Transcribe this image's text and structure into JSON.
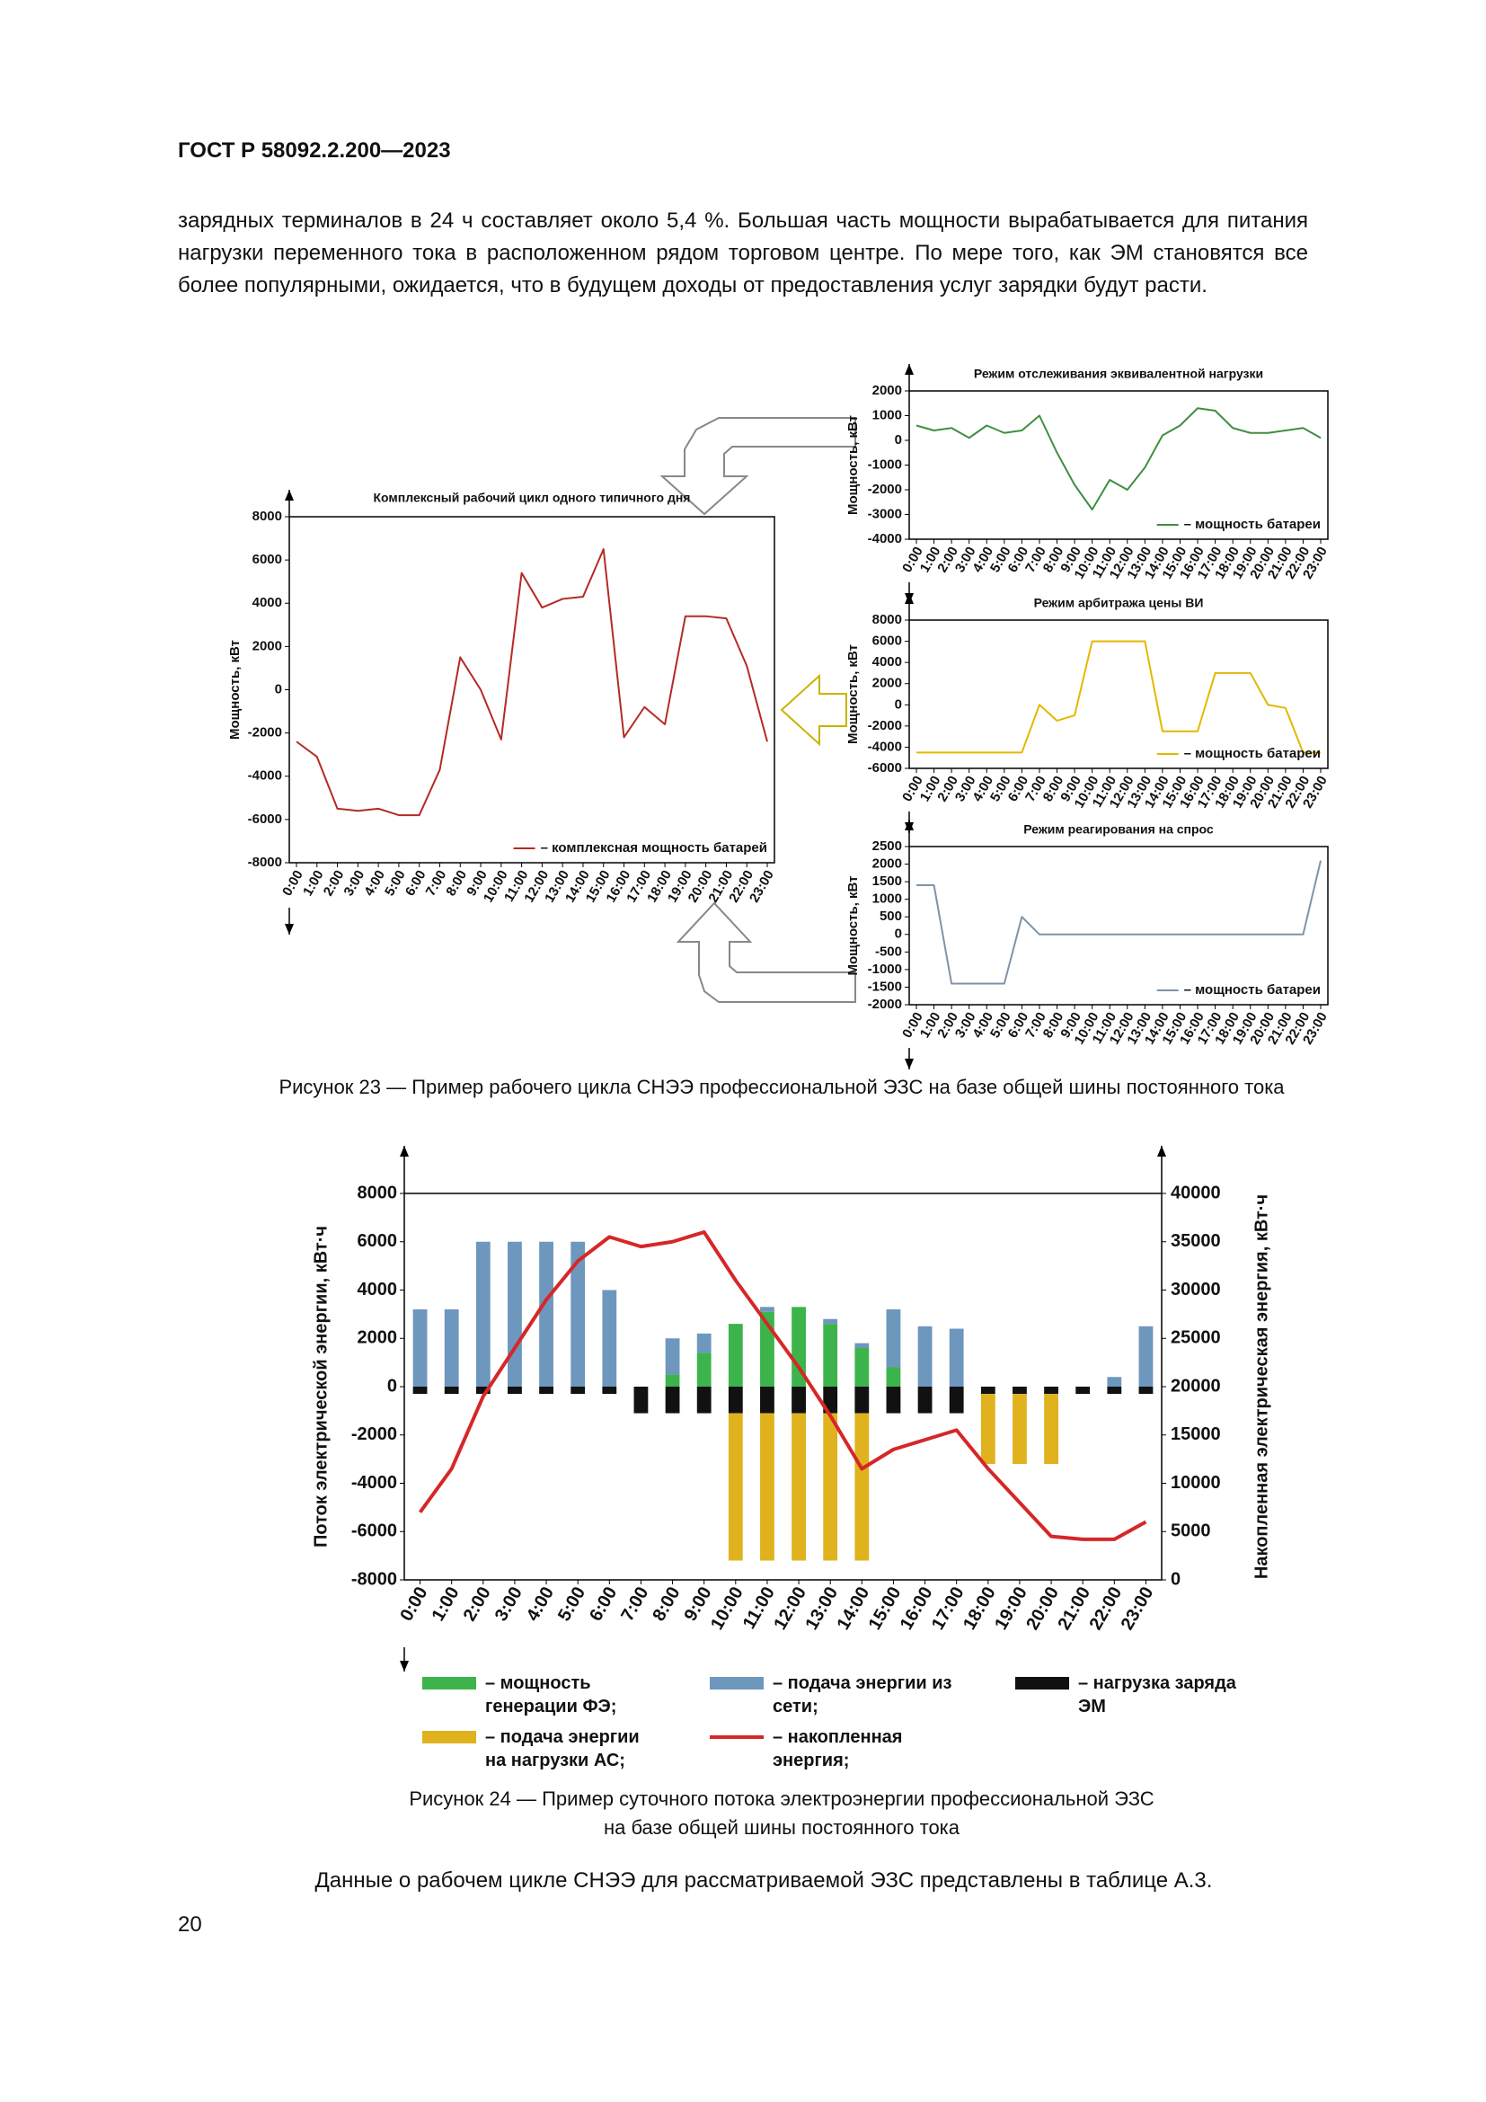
{
  "header": "ГОСТ Р 58092.2.200—2023",
  "intro_text": "зарядных терминалов в 24 ч составляет около 5,4 %. Большая часть мощности вырабатывается для питания нагрузки переменного тока в расположенном рядом торговом центре. По мере того, как ЭМ становятся все более популярными, ожидается, что в будущем доходы от предоставления услуг зарядки будут расти.",
  "figure_23": {
    "charts": [
      {
        "type": "line",
        "title": "Комплексный рабочий цикл одного типичного дня",
        "ylabel": "Мощность, кВт",
        "categories": [
          "0:00",
          "1:00",
          "2:00",
          "3:00",
          "4:00",
          "5:00",
          "6:00",
          "7:00",
          "8:00",
          "9:00",
          "10:00",
          "11:00",
          "12:00",
          "13:00",
          "14:00",
          "15:00",
          "16:00",
          "17:00",
          "18:00",
          "19:00",
          "20:00",
          "21:00",
          "22:00",
          "23:00"
        ],
        "series": [
          {
            "name": "– комплексная мощность батарей",
            "color": "#b52a25",
            "values": [
              -2400,
              -3100,
              -5500,
              -5600,
              -5500,
              -5800,
              -5800,
              -3700,
              1500,
              0,
              -2300,
              5400,
              3800,
              4200,
              4300,
              6500,
              -2200,
              -800,
              -1600,
              3400,
              3400,
              3300,
              1100,
              -2400
            ]
          }
        ],
        "ylim": [
          -8000,
          8000
        ],
        "yticks": [
          -8000,
          -6000,
          -4000,
          -2000,
          0,
          2000,
          4000,
          6000,
          8000
        ],
        "legend": "lower right"
      },
      {
        "type": "line",
        "title": "Режим отслеживания эквивалентной нагрузки",
        "ylabel": "Мощность, кВт",
        "categories": [
          "0:00",
          "1:00",
          "2:00",
          "3:00",
          "4:00",
          "5:00",
          "6:00",
          "7:00",
          "8:00",
          "9:00",
          "10:00",
          "11:00",
          "12:00",
          "13:00",
          "14:00",
          "15:00",
          "16:00",
          "17:00",
          "18:00",
          "19:00",
          "20:00",
          "21:00",
          "22:00",
          "23:00"
        ],
        "series": [
          {
            "name": "– мощность батареи",
            "color": "#3f8f3f",
            "values": [
              600,
              400,
              500,
              100,
              600,
              300,
              400,
              1000,
              -500,
              -1800,
              -2800,
              -1600,
              -2000,
              -1100,
              200,
              600,
              1300,
              1200,
              500,
              300,
              300,
              400,
              500,
              100
            ]
          }
        ],
        "ylim": [
          -4000,
          2000
        ],
        "yticks": [
          -4000,
          -3000,
          -2000,
          -1000,
          0,
          1000,
          2000
        ],
        "legend": "lower right"
      },
      {
        "type": "line",
        "title": "Режим арбитража цены ВИ",
        "ylabel": "Мощность, кВт",
        "categories": [
          "0:00",
          "1:00",
          "2:00",
          "3:00",
          "4:00",
          "5:00",
          "6:00",
          "7:00",
          "8:00",
          "9:00",
          "10:00",
          "11:00",
          "12:00",
          "13:00",
          "14:00",
          "15:00",
          "16:00",
          "17:00",
          "18:00",
          "19:00",
          "20:00",
          "21:00",
          "22:00",
          "23:00"
        ],
        "series": [
          {
            "name": "– мощность батареи",
            "color": "#e3b800",
            "values": [
              -4500,
              -4500,
              -4500,
              -4500,
              -4500,
              -4500,
              -4500,
              0,
              -1500,
              -1000,
              6000,
              6000,
              6000,
              6000,
              -2500,
              -2500,
              -2500,
              3000,
              3000,
              3000,
              0,
              -300,
              -4500,
              -4500
            ]
          }
        ],
        "ylim": [
          -6000,
          8000
        ],
        "yticks": [
          -6000,
          -4000,
          -2000,
          0,
          2000,
          4000,
          6000,
          8000
        ],
        "legend": "lower right"
      },
      {
        "type": "line",
        "title": "Режим реагирования на спрос",
        "ylabel": "Мощность, кВт",
        "categories": [
          "0:00",
          "1:00",
          "2:00",
          "3:00",
          "4:00",
          "5:00",
          "6:00",
          "7:00",
          "8:00",
          "9:00",
          "10:00",
          "11:00",
          "12:00",
          "13:00",
          "14:00",
          "15:00",
          "16:00",
          "17:00",
          "18:00",
          "19:00",
          "20:00",
          "21:00",
          "22:00",
          "23:00"
        ],
        "series": [
          {
            "name": "– мощность батареи",
            "color": "#7f93a8",
            "values": [
              1400,
              1400,
              -1400,
              -1400,
              -1400,
              -1400,
              500,
              0,
              0,
              0,
              0,
              0,
              0,
              0,
              0,
              0,
              0,
              0,
              0,
              0,
              0,
              0,
              0,
              2100
            ]
          }
        ],
        "ylim": [
          -2000,
          2500
        ],
        "yticks": [
          -2000,
          -1500,
          -1000,
          -500,
          0,
          500,
          1000,
          1500,
          2000,
          2500
        ],
        "legend": "lower right"
      }
    ],
    "caption": "Рисунок 23 — Пример рабочего цикла СНЭЭ профессиональной ЭЗС на базе общей шины постоянного тока"
  },
  "figure_24": {
    "chart": {
      "type": "bar",
      "stacked": true,
      "ylabel": "Поток электрической энергии, кВт·ч",
      "y2label": "Накопленная электрическая энергия, кВт·ч",
      "categories": [
        "0:00",
        "1:00",
        "2:00",
        "3:00",
        "4:00",
        "5:00",
        "6:00",
        "7:00",
        "8:00",
        "9:00",
        "10:00",
        "11:00",
        "12:00",
        "13:00",
        "14:00",
        "15:00",
        "16:00",
        "17:00",
        "18:00",
        "19:00",
        "20:00",
        "21:00",
        "22:00",
        "23:00"
      ],
      "series": [
        {
          "name": "– мощность генерации ФЭ;",
          "color": "#3cb44b",
          "values": [
            0,
            0,
            0,
            0,
            0,
            0,
            0,
            0,
            500,
            1400,
            2600,
            3100,
            3300,
            2600,
            1600,
            800,
            0,
            0,
            0,
            0,
            0,
            0,
            0,
            0
          ]
        },
        {
          "name": "– подача энергии из сети;",
          "color": "#6e97bd",
          "values": [
            3200,
            3200,
            6000,
            6000,
            6000,
            6000,
            4000,
            0,
            1500,
            800,
            0,
            200,
            0,
            200,
            200,
            2400,
            2500,
            2400,
            0,
            0,
            0,
            0,
            400,
            2500
          ]
        },
        {
          "name": "– нагрузка заряда ЭМ",
          "color": "#111111",
          "values": [
            -300,
            -300,
            -300,
            -300,
            -300,
            -300,
            -300,
            -1100,
            -1100,
            -1100,
            -1100,
            -1100,
            -1100,
            -1100,
            -1100,
            -1100,
            -1100,
            -1100,
            -300,
            -300,
            -300,
            -300,
            -300,
            -300
          ]
        },
        {
          "name": "– подача энергии на нагрузки АС;",
          "color": "#dfb21e",
          "values": [
            0,
            0,
            0,
            0,
            0,
            0,
            0,
            0,
            0,
            0,
            -6100,
            -6100,
            -6100,
            -6100,
            -6100,
            0,
            0,
            0,
            -2900,
            -2900,
            -2900,
            0,
            0,
            0
          ]
        },
        {
          "name": "– накопленная энергия;",
          "color": "#d62728",
          "type": "line",
          "axis": "y2",
          "values": [
            7000,
            11500,
            19000,
            24000,
            29000,
            33000,
            35500,
            34500,
            35000,
            36000,
            31000,
            26500,
            22000,
            17000,
            11500,
            13500,
            14500,
            15500,
            11500,
            8000,
            4500,
            4200,
            4200,
            6000
          ]
        }
      ],
      "ylim": [
        -8000,
        8000
      ],
      "yticks": [
        -8000,
        -6000,
        -4000,
        -2000,
        0,
        2000,
        4000,
        6000,
        8000
      ],
      "y2lim": [
        0,
        40000
      ],
      "y2ticks": [
        0,
        5000,
        10000,
        15000,
        20000,
        25000,
        30000,
        35000,
        40000
      ]
    },
    "caption": [
      "Рисунок 24 — Пример суточного потока электроэнергии профессиональной ЭЗС",
      "на базе общей шины постоянного тока"
    ]
  },
  "closing_text": "Данные о рабочем цикле СНЭЭ для рассматриваемой ЭЗС представлены в таблице А.3.",
  "page_number": "20"
}
